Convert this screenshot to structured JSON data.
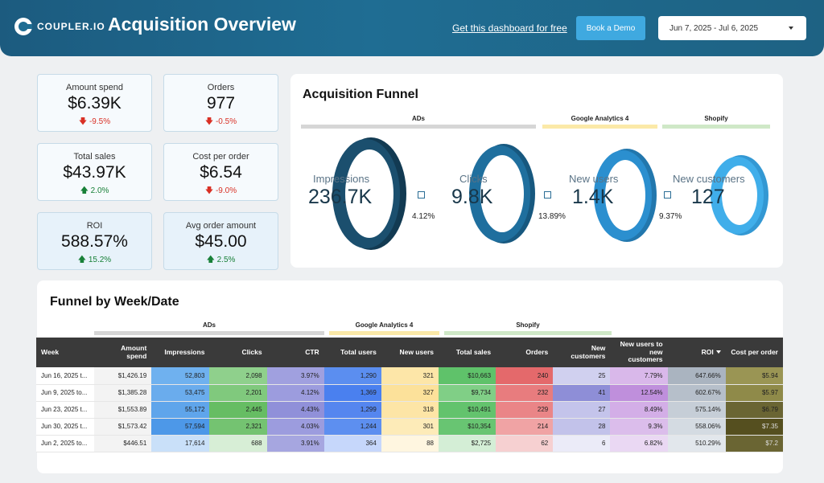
{
  "header": {
    "logo_text": "COUPLER.IO",
    "title": "Acquisition Overview",
    "free_link": "Get this dashboard for free",
    "demo_button": "Book a Demo",
    "date_range": "Jun 7, 2025 - Jul 6, 2025"
  },
  "kpis": {
    "amount_spend": {
      "label": "Amount spend",
      "value": "$6.39K",
      "delta": "-9.5%"
    },
    "orders": {
      "label": "Orders",
      "value": "977",
      "delta": "-0.5%"
    },
    "total_sales": {
      "label": "Total sales",
      "value": "$43.97K",
      "delta": "2.0%"
    },
    "cost_per_order": {
      "label": "Cost per order",
      "value": "$6.54",
      "delta": "-9.0%"
    },
    "roi": {
      "label": "ROI",
      "value": "588.57%",
      "delta": "15.2%"
    },
    "avg_order": {
      "label": "Avg order amount",
      "value": "$45.00",
      "delta": "2.5%"
    }
  },
  "funnel": {
    "title": "Acquisition Funnel",
    "groups": {
      "ads": "ADs",
      "ga4": "Google Analytics 4",
      "shopify": "Shopify"
    },
    "stages": [
      {
        "label": "Impressions",
        "value": "236.7K"
      },
      {
        "label": "Clicks",
        "value": "9.8K"
      },
      {
        "label": "New users",
        "value": "1.4K"
      },
      {
        "label": "New customers",
        "value": "127"
      }
    ],
    "conversions": [
      "4.12%",
      "13.89%",
      "9.37%"
    ],
    "colors": {
      "stage1": "#1b4f6e",
      "stage2": "#1f6f9e",
      "stage3": "#2b8fcf",
      "stage4": "#40aeea"
    }
  },
  "table": {
    "title": "Funnel by Week/Date",
    "groups": {
      "ads": "ADs",
      "ga4": "Google Analytics 4",
      "shopify": "Shopify"
    },
    "columns": [
      "Week",
      "Amount spend",
      "Impressions",
      "Clicks",
      "CTR",
      "Total users",
      "New users",
      "Total sales",
      "Orders",
      "New customers",
      "New users to new customers",
      "ROI",
      "Cost per order"
    ],
    "rows": [
      [
        "Jun 16, 2025 t...",
        "$1,426.19",
        "52,803",
        "2,098",
        "3.97%",
        "1,290",
        "321",
        "$10,663",
        "240",
        "25",
        "7.79%",
        "647.66%",
        "$5.94"
      ],
      [
        "Jun 9, 2025 to...",
        "$1,385.28",
        "53,475",
        "2,201",
        "4.12%",
        "1,369",
        "327",
        "$9,734",
        "232",
        "41",
        "12.54%",
        "602.67%",
        "$5.97"
      ],
      [
        "Jun 23, 2025 t...",
        "$1,553.89",
        "55,172",
        "2,445",
        "4.43%",
        "1,299",
        "318",
        "$10,491",
        "229",
        "27",
        "8.49%",
        "575.14%",
        "$6.79"
      ],
      [
        "Jun 30, 2025 t...",
        "$1,573.42",
        "57,594",
        "2,321",
        "4.03%",
        "1,244",
        "301",
        "$10,354",
        "214",
        "28",
        "9.3%",
        "558.06%",
        "$7.35"
      ],
      [
        "Jun 2, 2025 to...",
        "$446.51",
        "17,614",
        "688",
        "3.91%",
        "364",
        "88",
        "$2,725",
        "62",
        "6",
        "6.82%",
        "510.29%",
        "$7.2"
      ]
    ],
    "cell_colors": [
      [
        "#ffffff",
        "#f3f3f3",
        "#6fb1ef",
        "#8fd08c",
        "#a0a0df",
        "#5b8ef0",
        "#fde6a8",
        "#5fc26a",
        "#e4696b",
        "#d0d0ef",
        "#d9b8ea",
        "#aab4c0",
        "#9a9554"
      ],
      [
        "#ffffff",
        "#f3f3f3",
        "#6aaced",
        "#80c97d",
        "#9c9cde",
        "#4a80ef",
        "#fce19a",
        "#80cf86",
        "#e87c7e",
        "#8e8ed7",
        "#bf8fdc",
        "#b6bfca",
        "#8f8a49"
      ],
      [
        "#ffffff",
        "#f3f3f3",
        "#5fa5eb",
        "#66bd63",
        "#9090d9",
        "#5586ef",
        "#fde5a6",
        "#63c36d",
        "#ea8587",
        "#c4c4eb",
        "#d3aee7",
        "#c6ced7",
        "#6a6533"
      ],
      [
        "#ffffff",
        "#f3f3f3",
        "#4d98e8",
        "#74c371",
        "#9c9cde",
        "#5d8ff0",
        "#fdebb8",
        "#68c572",
        "#f0a3a4",
        "#c2c2ea",
        "#dbbdeb",
        "#d4dbe2",
        "#554f1f"
      ],
      [
        "#ffffff",
        "#f3f3f3",
        "#c9e0f9",
        "#d7eed6",
        "#a6a6e0",
        "#c6d7fb",
        "#fff6e0",
        "#d4eed6",
        "#f6d0d1",
        "#ebebf8",
        "#ead8f3",
        "#e2e7ec",
        "#6a6533"
      ]
    ],
    "text_colors": [
      [
        "#222222",
        "#222222",
        "#222222",
        "#222222",
        "#222222",
        "#222222",
        "#222222",
        "#222222",
        "#222222",
        "#222222",
        "#222222",
        "#222222",
        "#222222"
      ],
      [
        "#222222",
        "#222222",
        "#222222",
        "#222222",
        "#222222",
        "#222222",
        "#222222",
        "#222222",
        "#222222",
        "#222222",
        "#222222",
        "#222222",
        "#222222"
      ],
      [
        "#222222",
        "#222222",
        "#222222",
        "#222222",
        "#222222",
        "#222222",
        "#222222",
        "#222222",
        "#222222",
        "#222222",
        "#222222",
        "#222222",
        "#222222"
      ],
      [
        "#222222",
        "#222222",
        "#222222",
        "#222222",
        "#222222",
        "#222222",
        "#222222",
        "#222222",
        "#222222",
        "#222222",
        "#222222",
        "#222222",
        "#dddddd"
      ],
      [
        "#222222",
        "#222222",
        "#222222",
        "#222222",
        "#222222",
        "#222222",
        "#222222",
        "#222222",
        "#222222",
        "#222222",
        "#222222",
        "#222222",
        "#dddddd"
      ]
    ]
  }
}
